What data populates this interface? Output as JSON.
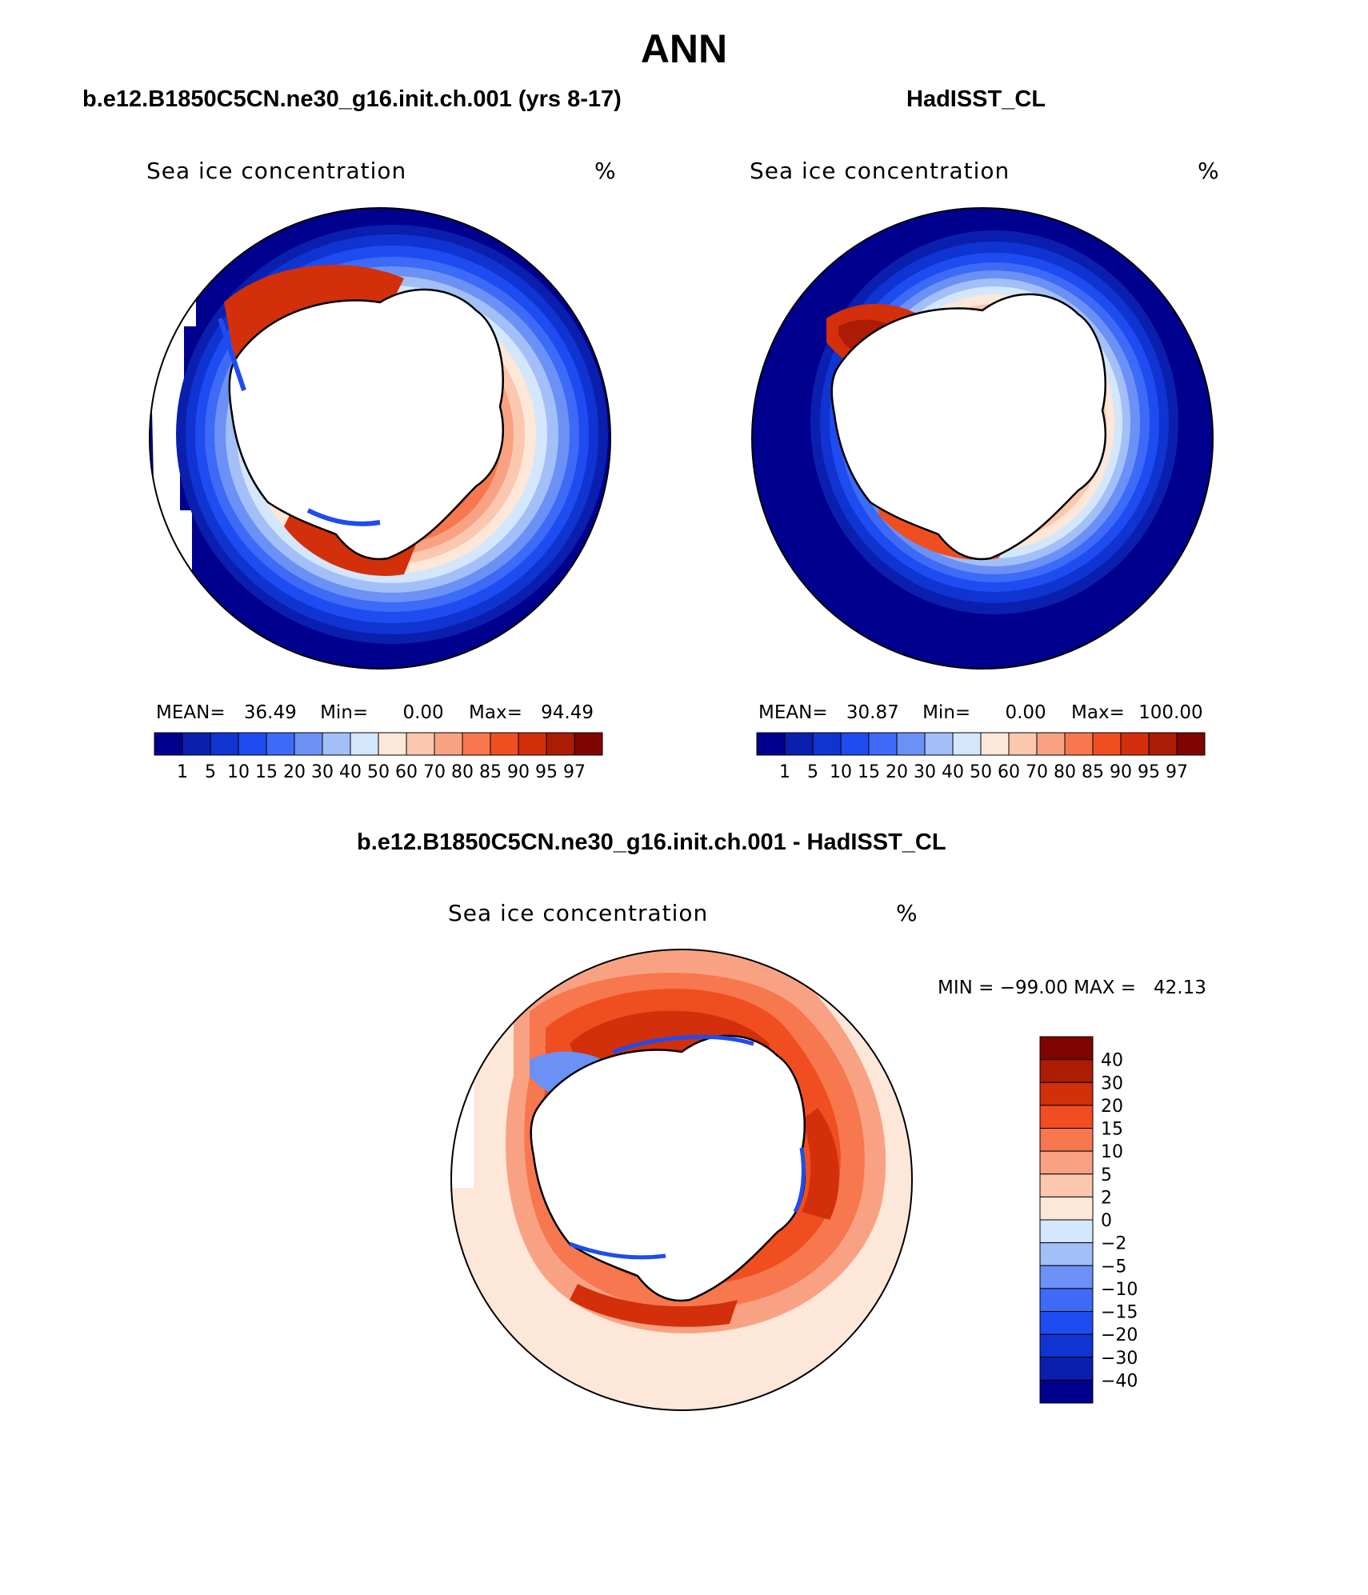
{
  "page": {
    "title": "ANN",
    "left_title": "b.e12.B1850C5CN.ne30_g16.init.ch.001 (yrs 8-17)",
    "right_title": "HadISST_CL",
    "diff_title": "b.e12.B1850C5CN.ne30_g16.init.ch.001 - HadISST_CL"
  },
  "panels": {
    "left": {
      "variable": "Sea ice concentration",
      "units": "%",
      "mean_label": "MEAN=",
      "mean_value": "36.49",
      "min_label": "Min=",
      "min_value": "0.00",
      "max_label": "Max=",
      "max_value": "94.49"
    },
    "right": {
      "variable": "Sea ice concentration",
      "units": "%",
      "mean_label": "MEAN=",
      "mean_value": "30.87",
      "min_label": "Min=",
      "min_value": "0.00",
      "max_label": "Max=",
      "max_value": "100.00"
    },
    "diff": {
      "variable": "Sea ice concentration",
      "units": "%",
      "minmax_text": "MIN = −99.00 MAX =   42.13"
    }
  },
  "chart_data": [
    {
      "type": "heatmap",
      "title": "b.e12.B1850C5CN.ne30_g16.init.ch.001 (yrs 8-17)",
      "variable": "Sea ice concentration",
      "units": "%",
      "projection": "south polar stereographic",
      "stats": {
        "mean": 36.49,
        "min": 0.0,
        "max": 94.49
      },
      "colorbar_levels": [
        "1",
        "5",
        "10",
        "15",
        "20",
        "30",
        "40",
        "50",
        "60",
        "70",
        "80",
        "85",
        "90",
        "95",
        "97"
      ],
      "colorbar_colors": [
        "#00008f",
        "#0a1fae",
        "#0f34d2",
        "#1f4cf0",
        "#3d6af7",
        "#6b91f7",
        "#a3bff8",
        "#d4e6fb",
        "#fde7d9",
        "#fbc7ae",
        "#f9a283",
        "#f7774e",
        "#f04e20",
        "#d32f0a",
        "#ac1b04",
        "#7f0502"
      ]
    },
    {
      "type": "heatmap",
      "title": "HadISST_CL",
      "variable": "Sea ice concentration",
      "units": "%",
      "projection": "south polar stereographic",
      "stats": {
        "mean": 30.87,
        "min": 0.0,
        "max": 100.0
      },
      "colorbar_levels": [
        "1",
        "5",
        "10",
        "15",
        "20",
        "30",
        "40",
        "50",
        "60",
        "70",
        "80",
        "85",
        "90",
        "95",
        "97"
      ],
      "colorbar_colors": [
        "#00008f",
        "#0a1fae",
        "#0f34d2",
        "#1f4cf0",
        "#3d6af7",
        "#6b91f7",
        "#a3bff8",
        "#d4e6fb",
        "#fde7d9",
        "#fbc7ae",
        "#f9a283",
        "#f7774e",
        "#f04e20",
        "#d32f0a",
        "#ac1b04",
        "#7f0502"
      ]
    },
    {
      "type": "heatmap",
      "title": "b.e12.B1850C5CN.ne30_g16.init.ch.001 - HadISST_CL",
      "variable": "Sea ice concentration",
      "units": "%",
      "projection": "south polar stereographic",
      "stats": {
        "min": -99.0,
        "max": 42.13
      },
      "colorbar_levels": [
        "40",
        "30",
        "20",
        "15",
        "10",
        "5",
        "2",
        "0",
        "−2",
        "−5",
        "−10",
        "−15",
        "−20",
        "−30",
        "−40"
      ],
      "colorbar_colors": [
        "#7f0502",
        "#ac1b04",
        "#d32f0a",
        "#f04e20",
        "#f7774e",
        "#f9a283",
        "#fbc7ae",
        "#fde7d9",
        "#d4e6fb",
        "#a3bff8",
        "#6b91f7",
        "#3d6af7",
        "#1f4cf0",
        "#0f34d2",
        "#0a1fae",
        "#00008f"
      ]
    }
  ]
}
